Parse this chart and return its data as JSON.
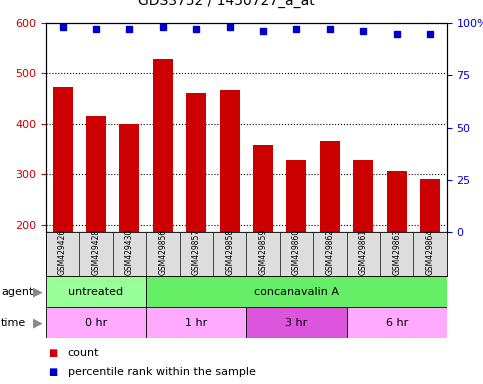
{
  "title": "GDS3752 / 1450727_a_at",
  "samples": [
    "GSM429426",
    "GSM429428",
    "GSM429430",
    "GSM429856",
    "GSM429857",
    "GSM429858",
    "GSM429859",
    "GSM429860",
    "GSM429862",
    "GSM429861",
    "GSM429863",
    "GSM429864"
  ],
  "counts": [
    473,
    415,
    400,
    528,
    462,
    468,
    358,
    328,
    367,
    329,
    307,
    291
  ],
  "percentile_ranks": [
    98,
    97,
    97,
    98,
    97,
    98,
    96,
    97,
    97,
    96,
    95,
    95
  ],
  "bar_color": "#cc0000",
  "dot_color": "#0000cc",
  "ylim_left": [
    185,
    600
  ],
  "ylim_right": [
    0,
    100
  ],
  "yticks_left": [
    200,
    300,
    400,
    500,
    600
  ],
  "yticks_right": [
    0,
    25,
    50,
    75,
    100
  ],
  "agent_groups": [
    {
      "label": "untreated",
      "start": 0,
      "end": 3,
      "color": "#99ff99"
    },
    {
      "label": "concanavalin A",
      "start": 3,
      "end": 12,
      "color": "#66ee66"
    }
  ],
  "time_groups": [
    {
      "label": "0 hr",
      "start": 0,
      "end": 3,
      "color": "#ffaaff"
    },
    {
      "label": "1 hr",
      "start": 3,
      "end": 6,
      "color": "#ffaaff"
    },
    {
      "label": "3 hr",
      "start": 6,
      "end": 9,
      "color": "#dd55dd"
    },
    {
      "label": "6 hr",
      "start": 9,
      "end": 12,
      "color": "#ffaaff"
    }
  ],
  "legend_items": [
    {
      "label": "count",
      "color": "#cc0000"
    },
    {
      "label": "percentile rank within the sample",
      "color": "#0000cc"
    }
  ]
}
